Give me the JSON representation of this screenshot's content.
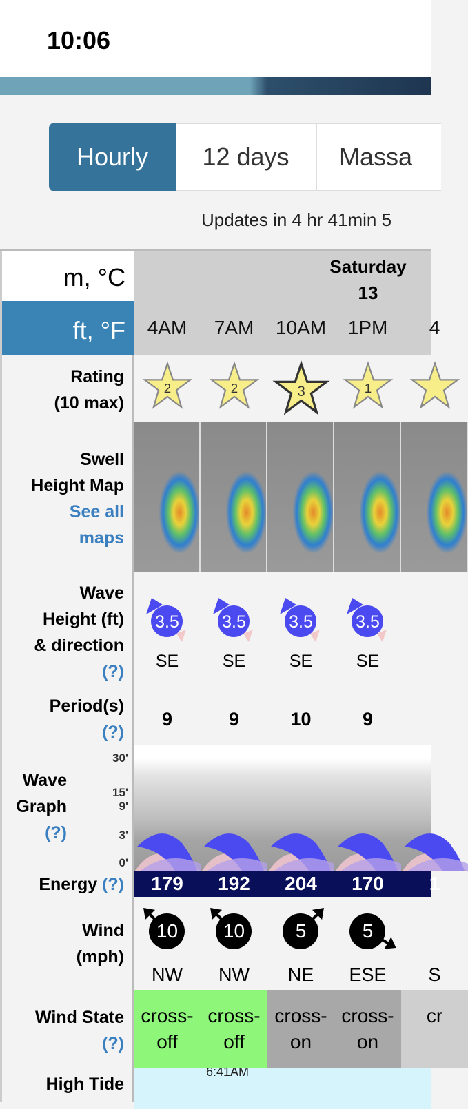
{
  "status_bar": {
    "time": "10:06"
  },
  "tabs": [
    {
      "label": "Hourly",
      "active": true
    },
    {
      "label": "12 days"
    },
    {
      "label": "Massa"
    }
  ],
  "updates": "Updates in 4 hr 41min 5",
  "units": {
    "metric": "m, °C",
    "imperial": "ft, °F"
  },
  "labels": {
    "rating": "Rating",
    "rating2": "(10 max)",
    "swell": "Swell",
    "swell2": "Height Map",
    "see_all": "See all",
    "maps": "maps",
    "wave": "Wave",
    "wave2": "Height (ft)",
    "wave3": "& direction",
    "help": "(?)",
    "period": "Period(s)",
    "graph": "Wave",
    "graph2": "Graph",
    "energy": "Energy",
    "wind": "Wind",
    "wind2": "(mph)",
    "wind_state": "Wind State",
    "high_tide": "High Tide"
  },
  "graph_axis": [
    "30'",
    "15'",
    "9'",
    "3'",
    "0'"
  ],
  "day": {
    "name": "Saturday",
    "date": "13"
  },
  "colors": {
    "accent": "#3a84b5",
    "wave": "#4a4af0",
    "energy_bg": "#0a0f5a",
    "cross_off": "#8ef77a",
    "cross_on": "#a8a8a8"
  },
  "columns": [
    {
      "time": "4AM",
      "rating": "2",
      "wave_height": "3.5",
      "wave_dir": "SE",
      "period": "9",
      "energy": "179",
      "wind": "10",
      "wind_dir": "NW",
      "state1": "cross-",
      "state2": "off",
      "state_color": "#8ef77a"
    },
    {
      "time": "7AM",
      "rating": "2",
      "wave_height": "3.5",
      "wave_dir": "SE",
      "period": "9",
      "energy": "192",
      "wind": "10",
      "wind_dir": "NW",
      "state1": "cross-",
      "state2": "off",
      "state_color": "#8ef77a"
    },
    {
      "time": "10AM",
      "rating": "3",
      "wave_height": "3.5",
      "wave_dir": "SE",
      "period": "10",
      "energy": "204",
      "wind": "5",
      "wind_dir": "NE",
      "state1": "cross-",
      "state2": "on",
      "state_color": "#a8a8a8"
    },
    {
      "time": "1PM",
      "rating": "1",
      "wave_height": "3.5",
      "wave_dir": "SE",
      "period": "9",
      "energy": "170",
      "wind": "5",
      "wind_dir": "ESE",
      "state1": "cross-",
      "state2": "on",
      "state_color": "#a8a8a8"
    },
    {
      "time": "4",
      "energy": "1",
      "wind_dir": "S",
      "state1": "cr",
      "state_color": "#cfcfcf"
    }
  ],
  "high_tide": "6:41AM"
}
